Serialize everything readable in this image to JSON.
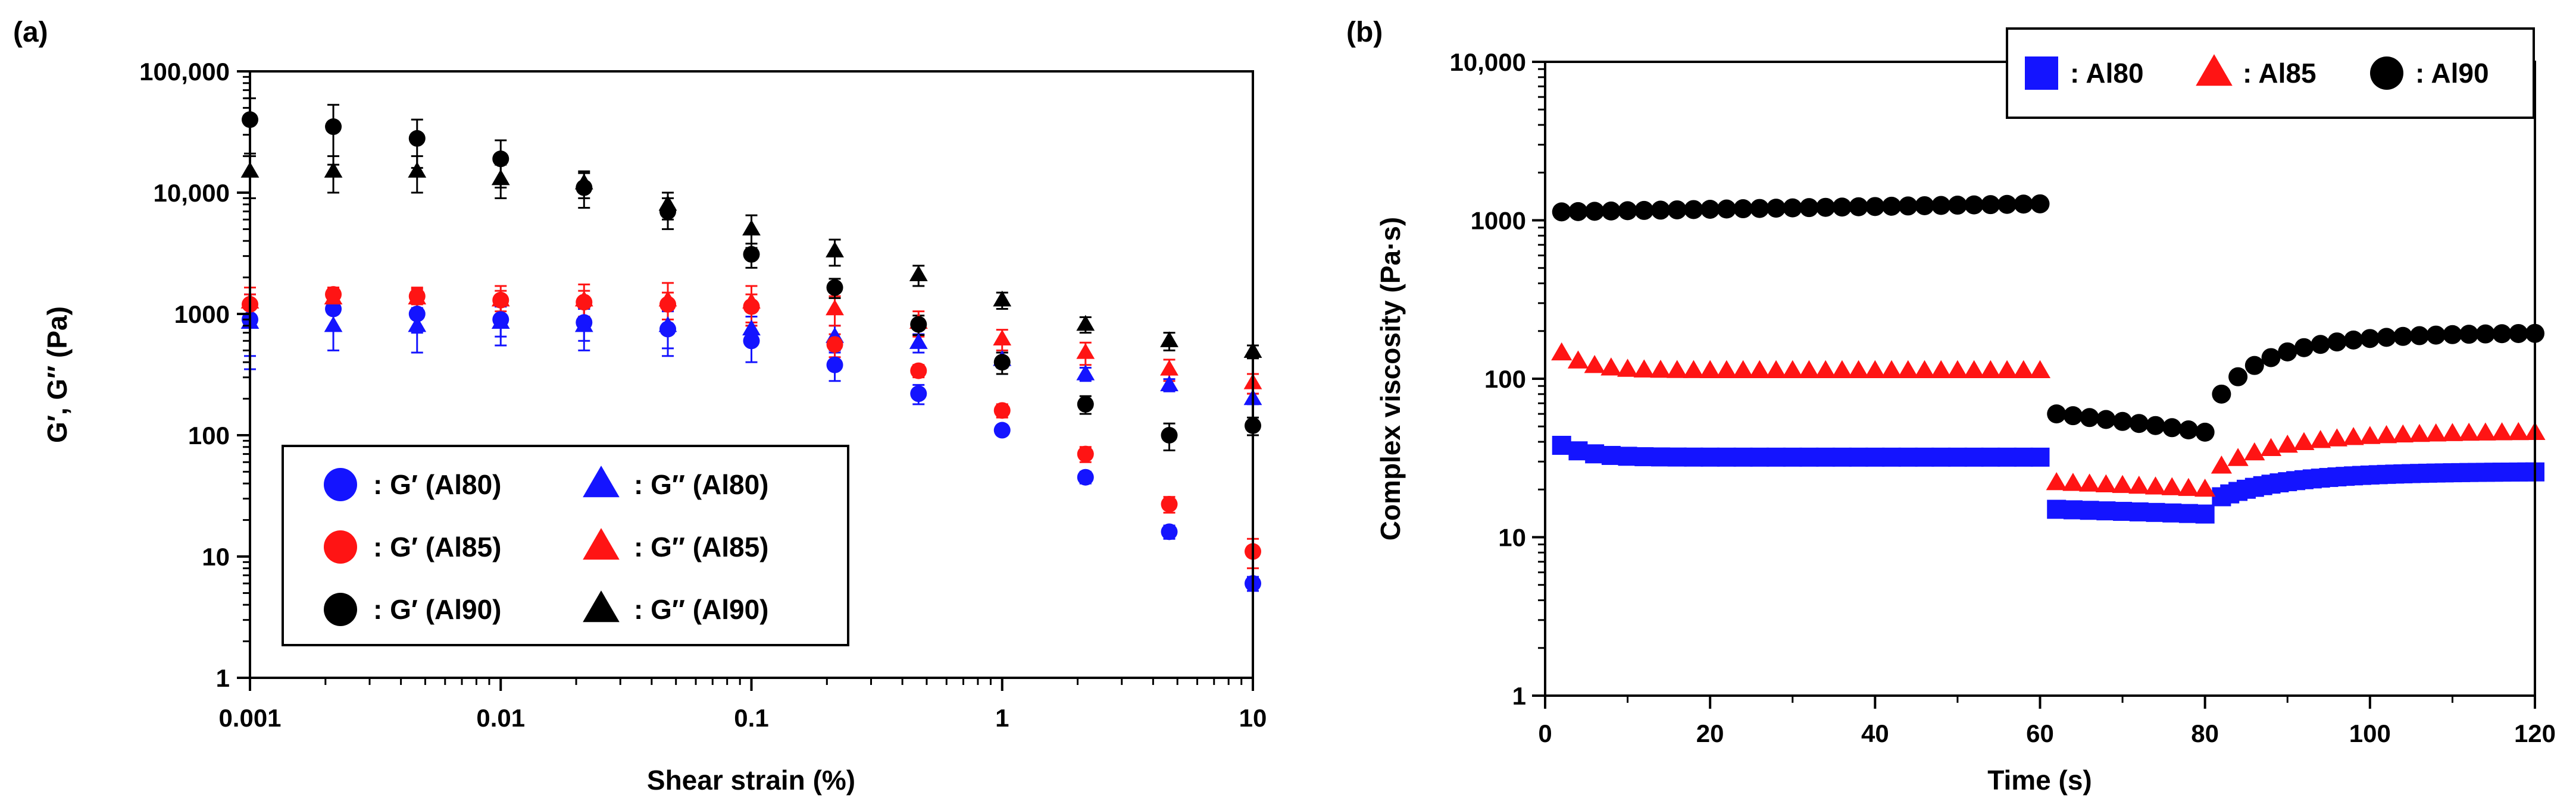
{
  "chart_data": [
    {
      "id": "a",
      "panel_label": "(a)",
      "type": "scatter",
      "xscale": "log",
      "yscale": "log",
      "xlabel": "Shear strain (%)",
      "ylabel": "G′, G″ (Pa)",
      "xlim": [
        0.001,
        10
      ],
      "ylim": [
        1,
        100000
      ],
      "xticks": [
        0.001,
        0.01,
        0.1,
        1,
        10
      ],
      "xtick_labels": [
        "0.001",
        "0.01",
        "0.1",
        "1",
        "10"
      ],
      "yticks": [
        1,
        10,
        100,
        1000,
        10000,
        100000
      ],
      "ytick_labels": [
        "1",
        "10",
        "100",
        "1000",
        "10,000",
        "100,000"
      ],
      "grid": false,
      "legend_position": "lower-left",
      "x": [
        0.001,
        0.00215,
        0.00464,
        0.01,
        0.0215,
        0.0464,
        0.1,
        0.215,
        0.464,
        1,
        2.15,
        4.64,
        10
      ],
      "series": [
        {
          "name": "G′ (Al80)",
          "legend_label": ": G′ (Al80)",
          "marker": "circle",
          "color": "#1414ff",
          "values": [
            900,
            1100,
            1000,
            900,
            850,
            750,
            600,
            380,
            220,
            110,
            45,
            16,
            6
          ],
          "errors": [
            550,
            350,
            300,
            250,
            250,
            300,
            200,
            100,
            40,
            10,
            5,
            2,
            0.8
          ]
        },
        {
          "name": "G″ (Al80)",
          "legend_label": ": G″ (Al80)",
          "marker": "triangle",
          "color": "#1414ff",
          "values": [
            850,
            800,
            800,
            850,
            800,
            800,
            750,
            650,
            580,
            420,
            320,
            260,
            200
          ],
          "errors": [
            400,
            300,
            320,
            300,
            300,
            280,
            200,
            150,
            100,
            60,
            40,
            30,
            20
          ]
        },
        {
          "name": "G′ (Al85)",
          "legend_label": ": G′ (Al85)",
          "marker": "circle",
          "color": "#ff1414",
          "values": [
            1200,
            1450,
            1400,
            1300,
            1250,
            1200,
            1150,
            560,
            340,
            160,
            70,
            27,
            11
          ],
          "errors": [
            250,
            200,
            200,
            250,
            300,
            300,
            300,
            120,
            40,
            20,
            10,
            4,
            3
          ]
        },
        {
          "name": "G″ (Al85)",
          "legend_label": ": G″ (Al85)",
          "marker": "triangle",
          "color": "#ff1414",
          "values": [
            1250,
            1350,
            1350,
            1300,
            1300,
            1300,
            1250,
            1100,
            850,
            620,
            480,
            350,
            270
          ],
          "errors": [
            400,
            300,
            300,
            400,
            450,
            500,
            450,
            300,
            200,
            120,
            100,
            70,
            50
          ]
        },
        {
          "name": "G′ (Al90)",
          "legend_label": ": G′ (Al90)",
          "marker": "circle",
          "color": "#000000",
          "values": [
            40000,
            35000,
            28000,
            19000,
            11000,
            7000,
            3100,
            1650,
            820,
            400,
            180,
            100,
            120
          ],
          "errors": [
            20000,
            18000,
            12000,
            8000,
            3500,
            2000,
            700,
            300,
            150,
            80,
            30,
            25,
            20
          ]
        },
        {
          "name": "G″ (Al90)",
          "legend_label": ": G″ (Al90)",
          "marker": "triangle",
          "color": "#000000",
          "values": [
            15000,
            15000,
            15000,
            13000,
            12000,
            8000,
            5000,
            3300,
            2100,
            1300,
            820,
            600,
            490
          ],
          "errors": [
            6000,
            5000,
            5000,
            4000,
            3000,
            2000,
            1500,
            800,
            400,
            200,
            120,
            100,
            60
          ]
        }
      ]
    },
    {
      "id": "b",
      "panel_label": "(b)",
      "type": "scatter",
      "xscale": "linear",
      "yscale": "log",
      "xlabel": "Time (s)",
      "ylabel": "Complex viscosity (Pa·s)",
      "xlim": [
        0,
        120
      ],
      "ylim": [
        1,
        10000
      ],
      "xticks": [
        0,
        20,
        40,
        60,
        80,
        100,
        120
      ],
      "xtick_labels": [
        "0",
        "20",
        "40",
        "60",
        "80",
        "100",
        "120"
      ],
      "yticks": [
        1,
        10,
        100,
        1000,
        10000
      ],
      "ytick_labels": [
        "1",
        "10",
        "100",
        "1000",
        "10,000"
      ],
      "grid": false,
      "legend_position": "top-right",
      "series": [
        {
          "name": "Al80",
          "legend_label": ": Al80",
          "marker": "square",
          "color": "#1414ff",
          "segments": [
            {
              "x_start": 2,
              "x_end": 60,
              "step": 2,
              "y_start": 38,
              "y_end": 33,
              "tau": 3,
              "y_final": 32
            },
            {
              "x_start": 62,
              "x_end": 80,
              "step": 2,
              "y_start": 15,
              "y_end": 14
            },
            {
              "x_start": 82,
              "x_end": 120,
              "step": 1,
              "y_start": 18,
              "y_end": 26,
              "tau": 10
            }
          ]
        },
        {
          "name": "Al85",
          "legend_label": ": Al85",
          "marker": "triangle",
          "color": "#ff1414",
          "segments": [
            {
              "x_start": 2,
              "x_end": 60,
              "step": 2,
              "y_start": 145,
              "y_end": 115,
              "tau": 3,
              "y_final": 112
            },
            {
              "x_start": 62,
              "x_end": 80,
              "step": 2,
              "y_start": 22,
              "y_end": 20
            },
            {
              "x_start": 82,
              "x_end": 120,
              "step": 2,
              "y_start": 28,
              "y_end": 46,
              "tau": 10
            }
          ]
        },
        {
          "name": "Al90",
          "legend_label": ": Al90",
          "marker": "circle",
          "color": "#000000",
          "segments": [
            {
              "x_start": 2,
              "x_end": 60,
              "step": 2,
              "y_start": 1130,
              "y_end": 1270
            },
            {
              "x_start": 62,
              "x_end": 80,
              "step": 2,
              "y_start": 60,
              "y_end": 46
            },
            {
              "x_start": 82,
              "x_end": 120,
              "step": 2,
              "y_start": 80,
              "y_end": 195,
              "tau": 9
            }
          ]
        }
      ]
    }
  ]
}
